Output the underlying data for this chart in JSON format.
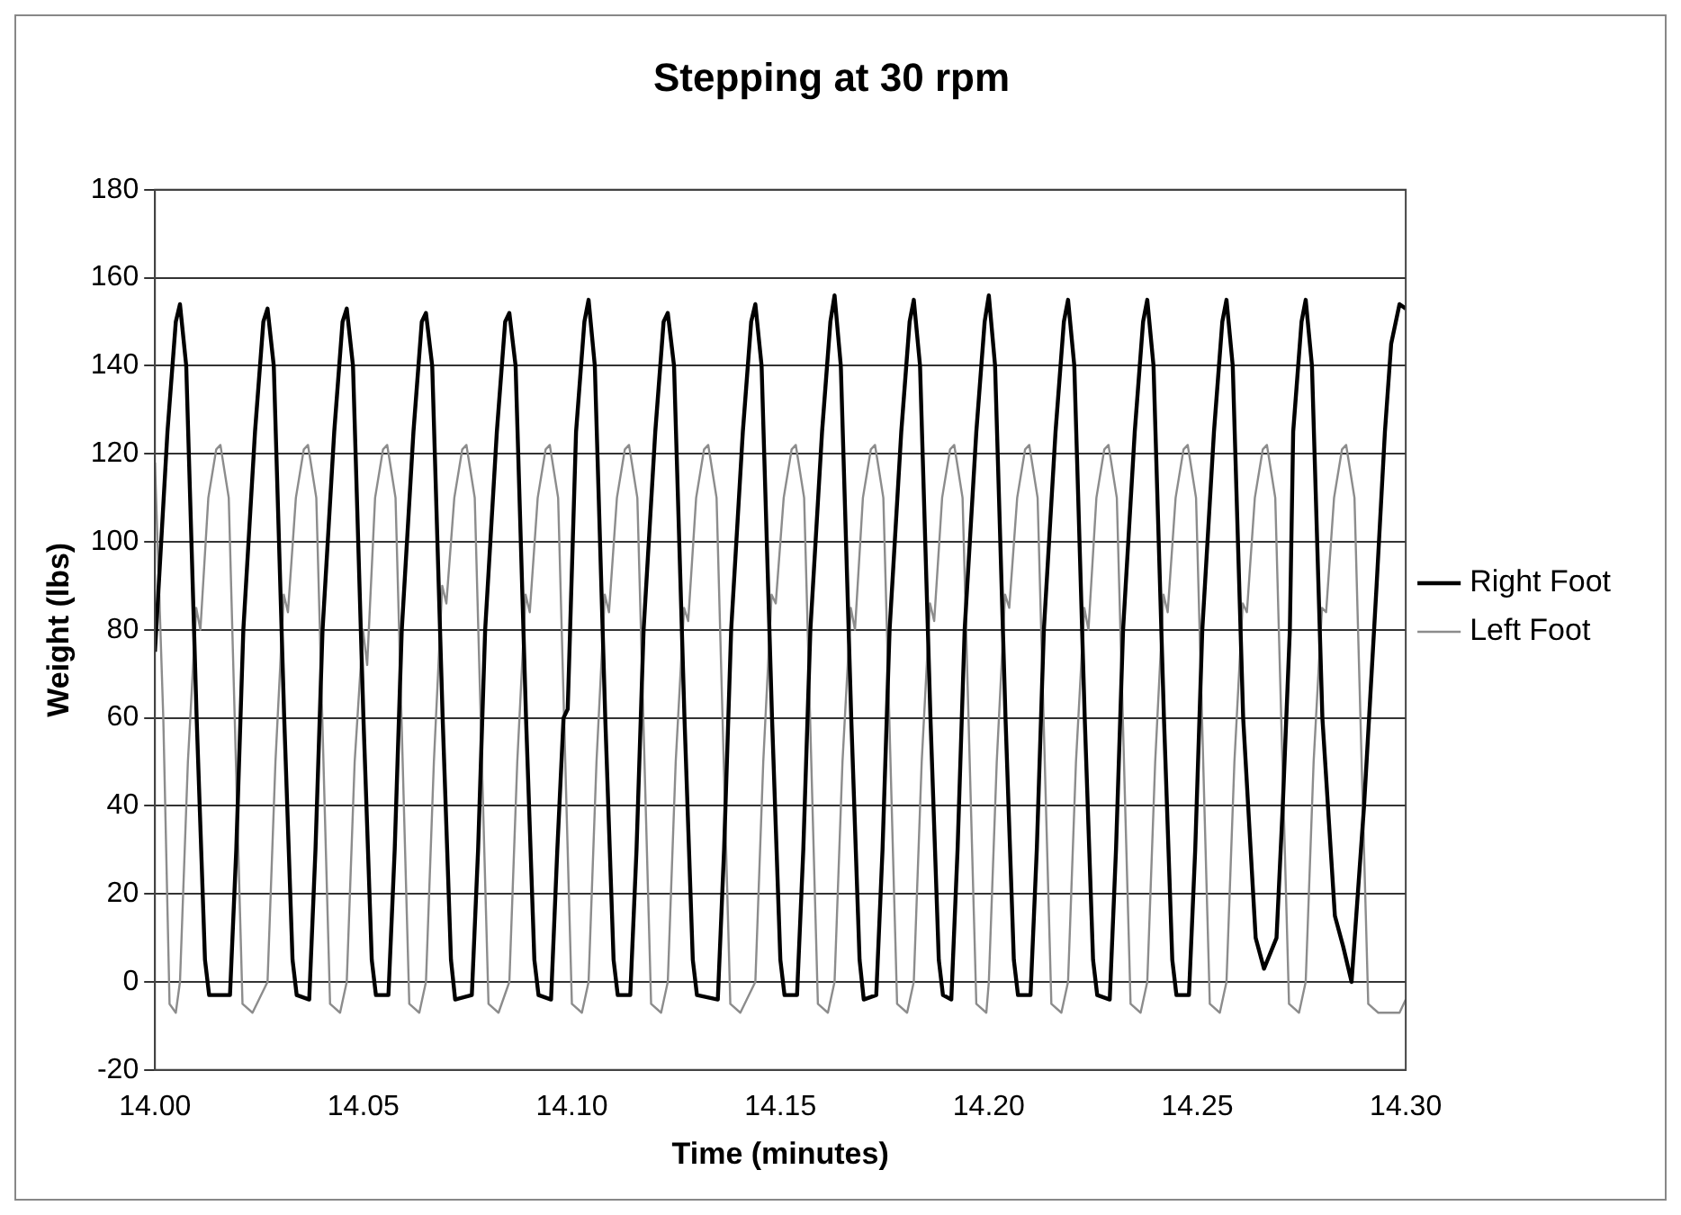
{
  "chart_data": {
    "type": "line",
    "title": "Stepping at 30 rpm",
    "xlabel": "Time (minutes)",
    "ylabel": "Weight (lbs)",
    "xlim": [
      14,
      14.3
    ],
    "xticks": [
      {
        "value": 14,
        "label": "14.00"
      },
      {
        "value": 14.05,
        "label": "14.05"
      },
      {
        "value": 14.1,
        "label": "14.10"
      },
      {
        "value": 14.15,
        "label": "14.15"
      },
      {
        "value": 14.2,
        "label": "14.20"
      },
      {
        "value": 14.25,
        "label": "14.25"
      },
      {
        "value": 14.3,
        "label": "14.30"
      }
    ],
    "ylim": [
      -20,
      180
    ],
    "yticks": [
      -20,
      0,
      20,
      40,
      60,
      80,
      100,
      120,
      140,
      160,
      180
    ],
    "grid": "y",
    "legend": "right",
    "marker": "none",
    "line_style": "solid",
    "series": [
      {
        "name": "Right Foot",
        "color": "#000000",
        "x": [
          14.0,
          14.003,
          14.005,
          14.006,
          14.0075,
          14.01,
          14.012,
          14.013,
          14.018,
          14.0195,
          14.0212,
          14.024,
          14.026,
          14.027,
          14.0285,
          14.031,
          14.033,
          14.034,
          14.037,
          14.0385,
          14.0402,
          14.043,
          14.045,
          14.046,
          14.0475,
          14.05,
          14.052,
          14.053,
          14.056,
          14.0575,
          14.0592,
          14.062,
          14.064,
          14.065,
          14.0665,
          14.069,
          14.071,
          14.072,
          14.076,
          14.0775,
          14.0792,
          14.082,
          14.084,
          14.085,
          14.0865,
          14.089,
          14.091,
          14.092,
          14.095,
          14.0965,
          14.098,
          14.099,
          14.101,
          14.103,
          14.104,
          14.1055,
          14.108,
          14.11,
          14.111,
          14.114,
          14.1155,
          14.1172,
          14.12,
          14.122,
          14.123,
          14.1245,
          14.127,
          14.129,
          14.13,
          14.135,
          14.1365,
          14.1382,
          14.141,
          14.143,
          14.144,
          14.1455,
          14.148,
          14.15,
          14.151,
          14.154,
          14.1555,
          14.1572,
          14.16,
          14.162,
          14.163,
          14.1645,
          14.167,
          14.169,
          14.17,
          14.173,
          14.1745,
          14.1762,
          14.179,
          14.181,
          14.182,
          14.1835,
          14.186,
          14.188,
          14.189,
          14.191,
          14.1925,
          14.1942,
          14.197,
          14.199,
          14.2,
          14.2015,
          14.204,
          14.206,
          14.207,
          14.21,
          14.2115,
          14.2132,
          14.216,
          14.218,
          14.219,
          14.2205,
          14.223,
          14.225,
          14.226,
          14.229,
          14.2305,
          14.2322,
          14.235,
          14.237,
          14.238,
          14.2395,
          14.242,
          14.244,
          14.245,
          14.248,
          14.2495,
          14.2512,
          14.254,
          14.256,
          14.257,
          14.2585,
          14.261,
          14.264,
          14.266,
          14.269,
          14.2705,
          14.2722,
          14.273,
          14.275,
          14.276,
          14.2775,
          14.28,
          14.283,
          14.285,
          14.287,
          14.29,
          14.293,
          14.295,
          14.2965,
          14.2985,
          14.3
        ],
        "values": [
          75,
          125,
          150,
          154,
          140,
          60,
          5,
          -3,
          -3,
          30,
          80,
          125,
          150,
          153,
          140,
          60,
          5,
          -3,
          -4,
          30,
          80,
          125,
          150,
          153,
          140,
          60,
          5,
          -3,
          -3,
          30,
          80,
          125,
          150,
          152,
          140,
          60,
          5,
          -4,
          -3,
          30,
          80,
          125,
          150,
          152,
          140,
          60,
          5,
          -3,
          -4,
          30,
          60,
          62,
          125,
          150,
          155,
          140,
          60,
          5,
          -3,
          -3,
          30,
          80,
          125,
          150,
          152,
          140,
          60,
          5,
          -3,
          -4,
          30,
          80,
          125,
          150,
          154,
          140,
          60,
          5,
          -3,
          -3,
          30,
          80,
          125,
          150,
          156,
          140,
          60,
          5,
          -4,
          -3,
          30,
          80,
          125,
          150,
          155,
          140,
          60,
          5,
          -3,
          -4,
          30,
          80,
          125,
          150,
          156,
          140,
          60,
          5,
          -3,
          -3,
          30,
          80,
          125,
          150,
          155,
          140,
          60,
          5,
          -3,
          -4,
          30,
          80,
          125,
          150,
          155,
          140,
          60,
          5,
          -3,
          -3,
          30,
          80,
          125,
          150,
          155,
          140,
          60,
          10,
          3,
          10,
          40,
          80,
          125,
          150,
          155,
          140,
          60,
          15,
          8,
          0,
          40,
          90,
          125,
          145,
          154,
          153
        ]
      },
      {
        "name": "Left Foot",
        "color": "#8c8c8c",
        "x": [
          14.0,
          14.002,
          14.0035,
          14.005,
          14.006,
          14.0079,
          14.0099,
          14.0109,
          14.0128,
          14.0147,
          14.0157,
          14.0177,
          14.0197,
          14.021,
          14.0234,
          14.027,
          14.0289,
          14.0309,
          14.0319,
          14.0338,
          14.0357,
          14.0367,
          14.0387,
          14.0407,
          14.042,
          14.0444,
          14.046,
          14.0479,
          14.0499,
          14.0509,
          14.0528,
          14.0547,
          14.0557,
          14.0577,
          14.0597,
          14.061,
          14.0634,
          14.065,
          14.0669,
          14.0689,
          14.0699,
          14.0718,
          14.0737,
          14.0747,
          14.0767,
          14.0787,
          14.08,
          14.0824,
          14.085,
          14.0869,
          14.0889,
          14.0899,
          14.0918,
          14.0937,
          14.0947,
          14.0967,
          14.0987,
          14.1,
          14.1024,
          14.104,
          14.1059,
          14.1079,
          14.1089,
          14.1108,
          14.1127,
          14.1137,
          14.1157,
          14.1177,
          14.119,
          14.1214,
          14.123,
          14.1249,
          14.1269,
          14.1279,
          14.1298,
          14.1317,
          14.1327,
          14.1347,
          14.1367,
          14.138,
          14.1404,
          14.144,
          14.1459,
          14.1479,
          14.1489,
          14.1508,
          14.1527,
          14.1537,
          14.1557,
          14.1577,
          14.159,
          14.1614,
          14.163,
          14.1649,
          14.1669,
          14.1679,
          14.1698,
          14.1717,
          14.1727,
          14.1747,
          14.1767,
          14.178,
          14.1804,
          14.182,
          14.1839,
          14.1859,
          14.1869,
          14.1888,
          14.1907,
          14.1917,
          14.1937,
          14.1957,
          14.197,
          14.1994,
          14.2,
          14.2019,
          14.2039,
          14.2049,
          14.2068,
          14.2087,
          14.2097,
          14.2117,
          14.2137,
          14.215,
          14.2174,
          14.219,
          14.2209,
          14.2229,
          14.2239,
          14.2258,
          14.2277,
          14.2287,
          14.2307,
          14.2327,
          14.234,
          14.2364,
          14.238,
          14.2399,
          14.2419,
          14.2429,
          14.2448,
          14.2467,
          14.2477,
          14.2497,
          14.2517,
          14.253,
          14.2554,
          14.257,
          14.2589,
          14.2609,
          14.2619,
          14.2638,
          14.2657,
          14.2667,
          14.2687,
          14.2707,
          14.272,
          14.2744,
          14.276,
          14.2779,
          14.2799,
          14.2809,
          14.2828,
          14.2847,
          14.2857,
          14.2877,
          14.2897,
          14.291,
          14.2934,
          14.2985,
          14.3
        ],
        "values": [
          118,
          60,
          -5,
          -7,
          0,
          50,
          85,
          80,
          110,
          121,
          122,
          110,
          40,
          -5,
          -7,
          0,
          50,
          88,
          84,
          110,
          121,
          122,
          110,
          40,
          -5,
          -7,
          0,
          50,
          80,
          72,
          110,
          121,
          122,
          110,
          40,
          -5,
          -7,
          0,
          50,
          90,
          86,
          110,
          121,
          122,
          110,
          40,
          -5,
          -7,
          0,
          50,
          88,
          84,
          110,
          121,
          122,
          110,
          40,
          -5,
          -7,
          0,
          50,
          88,
          84,
          110,
          121,
          122,
          110,
          40,
          -5,
          -7,
          0,
          50,
          85,
          82,
          110,
          121,
          122,
          110,
          40,
          -5,
          -7,
          0,
          50,
          88,
          86,
          110,
          121,
          122,
          110,
          40,
          -5,
          -7,
          0,
          50,
          85,
          80,
          110,
          121,
          122,
          110,
          40,
          -5,
          -7,
          0,
          50,
          86,
          82,
          110,
          121,
          122,
          110,
          40,
          -5,
          -7,
          0,
          50,
          88,
          85,
          110,
          121,
          122,
          110,
          40,
          -5,
          -7,
          0,
          50,
          85,
          80,
          110,
          121,
          122,
          110,
          40,
          -5,
          -7,
          0,
          50,
          88,
          84,
          110,
          121,
          122,
          110,
          40,
          -5,
          -7,
          0,
          50,
          86,
          84,
          110,
          121,
          122,
          110,
          40,
          -5,
          -7,
          0,
          50,
          85,
          84,
          110,
          121,
          122,
          110,
          40,
          -5,
          -7,
          -7,
          -4
        ]
      }
    ]
  }
}
